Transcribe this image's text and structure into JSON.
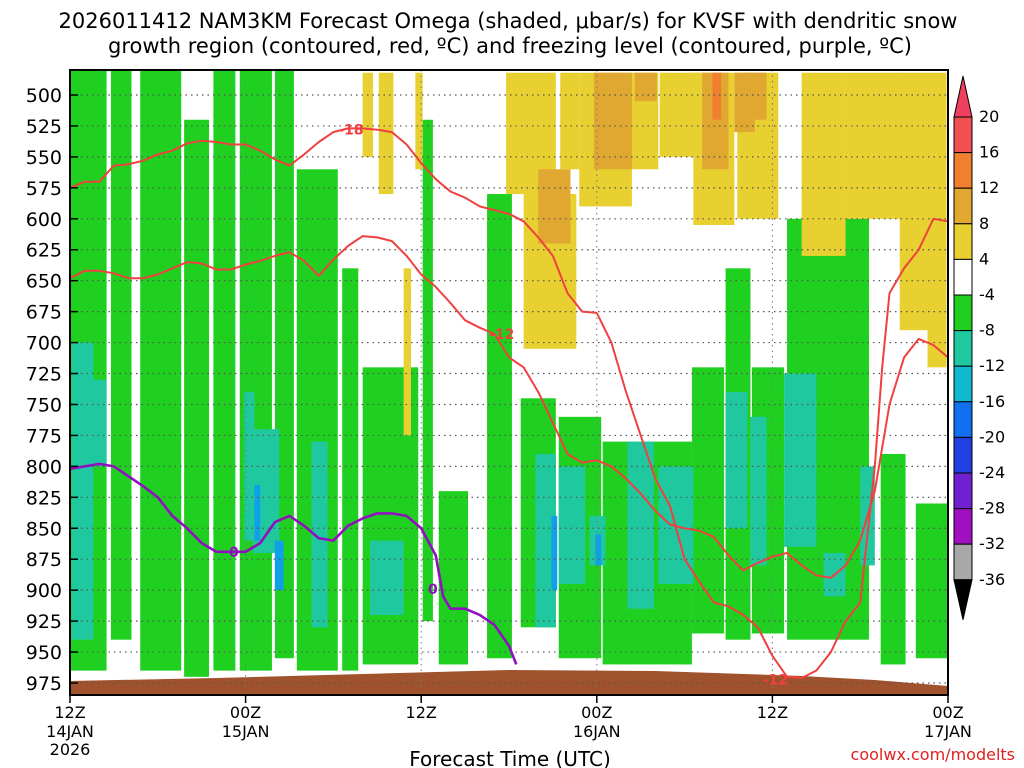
{
  "chart_data": {
    "type": "heatmap",
    "title_line1": "2026011412 NAM3KM Forecast Omega (shaded, μbar/s) for KVSF with dendritic snow",
    "title_line2": "growth region (contoured, red, ºC) and freezing level (contoured, purple, ºC)",
    "xlabel": "Forecast Time (UTC)",
    "credit": "coolwx.com/modelts",
    "x_ticks": [
      {
        "hour": 0,
        "label1": "12Z",
        "label2": "14JAN",
        "label3": "2026"
      },
      {
        "hour": 12,
        "label1": "00Z",
        "label2": "15JAN",
        "label3": ""
      },
      {
        "hour": 24,
        "label1": "12Z",
        "label2": "",
        "label3": ""
      },
      {
        "hour": 36,
        "label1": "00Z",
        "label2": "16JAN",
        "label3": ""
      },
      {
        "hour": 48,
        "label1": "12Z",
        "label2": "",
        "label3": ""
      },
      {
        "hour": 60,
        "label1": "00Z",
        "label2": "17JAN",
        "label3": ""
      }
    ],
    "x_range_hours": [
      0,
      60
    ],
    "y_levels": [
      "500",
      "525",
      "550",
      "575",
      "600",
      "625",
      "650",
      "675",
      "700",
      "725",
      "750",
      "775",
      "800",
      "825",
      "850",
      "875",
      "900",
      "925",
      "950",
      "975"
    ],
    "y_range_hpa": [
      482,
      990
    ],
    "colorbar": {
      "labels": [
        "20",
        "16",
        "12",
        "8",
        "4",
        "-4",
        "-8",
        "-12",
        "-16",
        "-20",
        "-24",
        "-28",
        "-32",
        "-36"
      ],
      "colors": [
        "#f04060",
        "#f05050",
        "#f08030",
        "#e0a830",
        "#e8d030",
        "#ffffff",
        "#20d020",
        "#20c8a0",
        "#10b8d0",
        "#1070f0",
        "#2040e0",
        "#7020d0",
        "#a010c0",
        "#a8a8a8",
        "#000000"
      ]
    },
    "contour_labels": [
      {
        "text": "-18",
        "color": "#f04040",
        "hour": 19.2,
        "hpa": 528
      },
      {
        "text": "-12",
        "color": "#f04040",
        "hour": 29.5,
        "hpa": 693
      },
      {
        "text": "-12",
        "color": "#f04040",
        "hour": 48.2,
        "hpa": 972
      },
      {
        "text": "0",
        "color": "#9010c0",
        "hour": 11.2,
        "hpa": 869
      },
      {
        "text": "0",
        "color": "#9010c0",
        "hour": 24.8,
        "hpa": 899
      }
    ],
    "contours": [
      {
        "name": "dgz-top",
        "color": "#f04040",
        "points": [
          [
            0,
            575
          ],
          [
            1,
            570
          ],
          [
            2,
            570
          ],
          [
            3,
            557
          ],
          [
            4,
            556
          ],
          [
            5,
            553
          ],
          [
            6,
            548
          ],
          [
            7,
            545
          ],
          [
            8,
            539
          ],
          [
            9,
            537
          ],
          [
            10,
            538
          ],
          [
            11,
            540
          ],
          [
            12,
            540
          ],
          [
            13,
            545
          ],
          [
            14,
            552
          ],
          [
            15,
            557
          ],
          [
            16,
            548
          ],
          [
            17,
            538
          ],
          [
            18,
            530
          ],
          [
            19,
            527
          ],
          [
            20,
            527
          ],
          [
            21,
            528
          ],
          [
            22,
            530
          ],
          [
            23,
            540
          ],
          [
            24,
            555
          ],
          [
            25,
            568
          ],
          [
            26,
            578
          ],
          [
            27,
            583
          ],
          [
            28,
            590
          ],
          [
            29,
            593
          ],
          [
            30,
            596
          ],
          [
            31,
            602
          ],
          [
            32,
            615
          ],
          [
            33,
            630
          ],
          [
            34,
            660
          ],
          [
            35,
            675
          ],
          [
            36,
            676
          ]
        ]
      },
      {
        "name": "dgz-bottom",
        "color": "#f04040",
        "points": [
          [
            0,
            648
          ],
          [
            1,
            642
          ],
          [
            2,
            642
          ],
          [
            3,
            644
          ],
          [
            4,
            648
          ],
          [
            5,
            648
          ],
          [
            6,
            645
          ],
          [
            7,
            640
          ],
          [
            8,
            635
          ],
          [
            9,
            636
          ],
          [
            10,
            641
          ],
          [
            11,
            641
          ],
          [
            12,
            637
          ],
          [
            13,
            634
          ],
          [
            14,
            630
          ],
          [
            15,
            627
          ],
          [
            16,
            634
          ],
          [
            17,
            646
          ],
          [
            18,
            633
          ],
          [
            19,
            622
          ],
          [
            20,
            614
          ],
          [
            21,
            615
          ],
          [
            22,
            618
          ],
          [
            23,
            630
          ],
          [
            24,
            645
          ],
          [
            25,
            655
          ],
          [
            26,
            668
          ],
          [
            27,
            682
          ],
          [
            28,
            688
          ],
          [
            29,
            693
          ],
          [
            30,
            712
          ],
          [
            31,
            720
          ],
          [
            32,
            740
          ],
          [
            33,
            765
          ],
          [
            34,
            790
          ],
          [
            35,
            797
          ],
          [
            36,
            795
          ],
          [
            37,
            800
          ],
          [
            38,
            810
          ],
          [
            39,
            822
          ],
          [
            40,
            836
          ],
          [
            41,
            847
          ],
          [
            42,
            850
          ],
          [
            43,
            852
          ],
          [
            44,
            857
          ],
          [
            45,
            872
          ],
          [
            46,
            884
          ],
          [
            47,
            878
          ],
          [
            48,
            873
          ],
          [
            49,
            870
          ],
          [
            50,
            880
          ],
          [
            51,
            888
          ],
          [
            52,
            890
          ],
          [
            53,
            880
          ],
          [
            54,
            860
          ],
          [
            55,
            820
          ],
          [
            56,
            750
          ],
          [
            57,
            712
          ],
          [
            58,
            697
          ],
          [
            59,
            702
          ],
          [
            60,
            712
          ]
        ]
      },
      {
        "name": "dgz-right",
        "color": "#f04040",
        "points": [
          [
            36,
            676
          ],
          [
            37,
            700
          ],
          [
            38,
            740
          ],
          [
            39,
            775
          ],
          [
            40,
            810
          ],
          [
            41,
            832
          ],
          [
            42,
            875
          ],
          [
            43,
            893
          ],
          [
            44,
            910
          ],
          [
            45,
            913
          ],
          [
            46,
            920
          ],
          [
            47,
            930
          ],
          [
            48,
            953
          ],
          [
            49,
            970
          ],
          [
            50,
            971
          ],
          [
            51,
            965
          ],
          [
            52,
            950
          ],
          [
            53,
            925
          ],
          [
            54,
            910
          ],
          [
            55,
            800
          ],
          [
            55.5,
            720
          ],
          [
            56,
            660
          ],
          [
            57,
            640
          ],
          [
            58,
            625
          ],
          [
            59,
            600
          ],
          [
            60,
            602
          ]
        ]
      },
      {
        "name": "freezing-level",
        "color": "#9010c0",
        "points": [
          [
            0,
            802
          ],
          [
            1,
            800
          ],
          [
            2,
            798
          ],
          [
            3,
            800
          ],
          [
            4,
            808
          ],
          [
            5,
            816
          ],
          [
            6,
            825
          ],
          [
            7,
            840
          ],
          [
            8,
            850
          ],
          [
            9,
            862
          ],
          [
            10,
            869
          ],
          [
            11,
            869
          ],
          [
            12,
            869
          ],
          [
            13,
            862
          ],
          [
            14,
            845
          ],
          [
            15,
            840
          ],
          [
            16,
            848
          ],
          [
            17,
            858
          ],
          [
            18,
            860
          ],
          [
            19,
            848
          ],
          [
            20,
            842
          ],
          [
            21,
            838
          ],
          [
            22,
            838
          ],
          [
            23,
            840
          ],
          [
            24,
            850
          ],
          [
            25,
            872
          ],
          [
            25.5,
            905
          ],
          [
            26,
            915
          ],
          [
            27,
            915
          ],
          [
            28,
            920
          ],
          [
            29,
            928
          ],
          [
            30,
            945
          ],
          [
            30.5,
            960
          ]
        ]
      }
    ],
    "shading": {
      "green": [
        [
          0,
          480,
          2.5,
          965
        ],
        [
          2.8,
          480,
          4.2,
          940
        ],
        [
          4.8,
          480,
          7.6,
          965
        ],
        [
          7.8,
          520,
          9.5,
          970
        ],
        [
          9.8,
          480,
          11.3,
          965
        ],
        [
          11.6,
          480,
          13.8,
          965
        ],
        [
          14.0,
          480,
          15.3,
          955
        ],
        [
          15.5,
          560,
          18.3,
          965
        ],
        [
          18.6,
          640,
          19.7,
          965
        ],
        [
          20.0,
          720,
          23.8,
          960
        ],
        [
          24.1,
          520,
          24.8,
          925
        ],
        [
          25.2,
          820,
          27.2,
          960
        ],
        [
          28.5,
          580,
          30.2,
          955
        ],
        [
          30.8,
          745,
          33.2,
          930
        ],
        [
          33.4,
          760,
          36.3,
          955
        ],
        [
          36.4,
          780,
          42.5,
          960
        ],
        [
          42.5,
          720,
          44.7,
          935
        ],
        [
          44.8,
          640,
          46.5,
          940
        ],
        [
          46.6,
          720,
          48.8,
          935
        ],
        [
          49.0,
          600,
          54.6,
          940
        ],
        [
          55.4,
          790,
          57.1,
          960
        ],
        [
          57.8,
          830,
          60,
          955
        ]
      ],
      "teal": [
        [
          0.1,
          700,
          1.6,
          940
        ],
        [
          11.9,
          740,
          12.6,
          860
        ],
        [
          12.5,
          770,
          14.3,
          870
        ],
        [
          16.5,
          780,
          17.6,
          930
        ],
        [
          20.5,
          860,
          22.8,
          920
        ],
        [
          31.8,
          790,
          33.2,
          930
        ],
        [
          33.4,
          800,
          35.2,
          895
        ],
        [
          35.5,
          840,
          36.6,
          880
        ],
        [
          38.1,
          780,
          39.9,
          915
        ],
        [
          40.2,
          800,
          42.6,
          895
        ],
        [
          44.8,
          740,
          46.3,
          850
        ],
        [
          46.5,
          760,
          47.6,
          880
        ],
        [
          48.8,
          725,
          51.0,
          865
        ],
        [
          51.5,
          870,
          53.0,
          905
        ],
        [
          54.0,
          800,
          55.0,
          880
        ],
        [
          1.5,
          730,
          2.5,
          800
        ]
      ],
      "blue": [
        [
          12.6,
          815,
          13.0,
          860
        ],
        [
          32.9,
          840,
          33.3,
          900
        ],
        [
          14.0,
          860,
          14.6,
          900
        ],
        [
          35.9,
          855,
          36.3,
          880
        ]
      ],
      "yellow": [
        [
          20.0,
          482,
          20.7,
          550
        ],
        [
          21.1,
          482,
          22.1,
          580
        ],
        [
          23.6,
          482,
          24.1,
          560
        ],
        [
          22.8,
          640,
          23.3,
          775
        ],
        [
          29.8,
          482,
          33.2,
          580
        ],
        [
          31.0,
          580,
          34.6,
          705
        ],
        [
          33.5,
          482,
          34.8,
          560
        ],
        [
          34.8,
          482,
          38.4,
          590
        ],
        [
          38.4,
          482,
          40.2,
          560
        ],
        [
          40.3,
          482,
          43.5,
          550
        ],
        [
          42.6,
          482,
          45.4,
          605
        ],
        [
          45.6,
          482,
          48.4,
          600
        ],
        [
          50.0,
          482,
          53.0,
          630
        ],
        [
          53.0,
          482,
          56.8,
          600
        ],
        [
          56.7,
          482,
          58.6,
          690
        ],
        [
          58.6,
          482,
          59.9,
          720
        ]
      ],
      "lightorange": [
        [
          32.0,
          560,
          34.2,
          620
        ],
        [
          35.8,
          482,
          38.4,
          560
        ],
        [
          38.6,
          482,
          40.1,
          505
        ],
        [
          43.2,
          482,
          45.0,
          560
        ],
        [
          45.4,
          482,
          46.8,
          530
        ],
        [
          46.2,
          482,
          47.6,
          520
        ]
      ],
      "orange": [
        [
          43.9,
          482,
          44.5,
          520
        ]
      ]
    }
  }
}
